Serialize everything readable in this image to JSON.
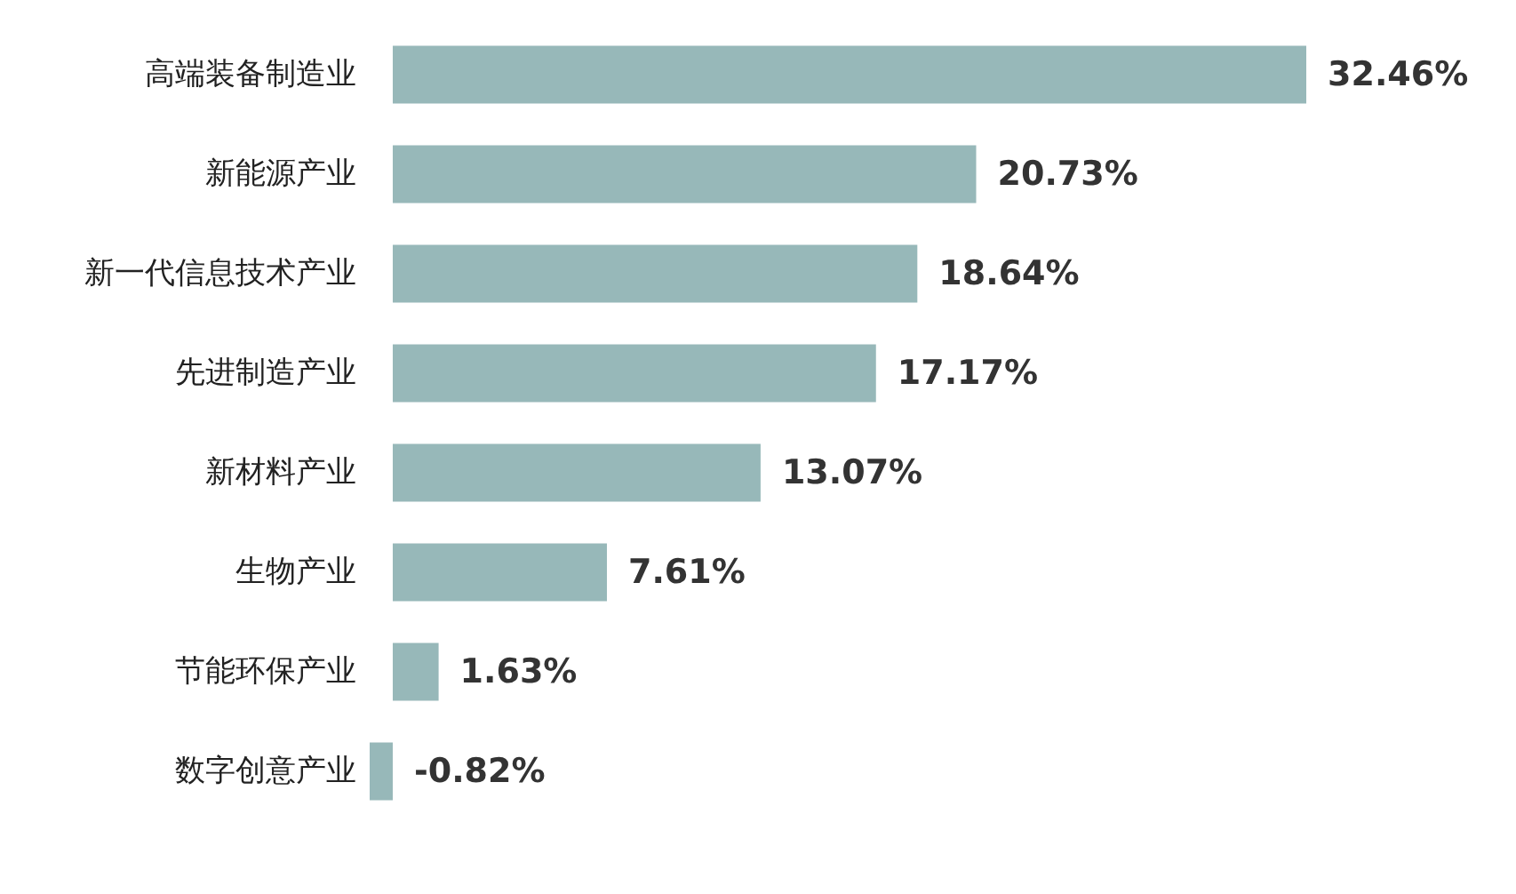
{
  "chart_data": {
    "type": "bar",
    "orientation": "horizontal",
    "categories": [
      "高端装备制造业",
      "新能源产业",
      "新一代信息技术产业",
      "先进制造产业",
      "新材料产业",
      "生物产业",
      "节能环保产业",
      "数字创意产业"
    ],
    "values": [
      32.46,
      20.73,
      18.64,
      17.17,
      13.07,
      7.61,
      1.63,
      -0.82
    ],
    "value_labels": [
      "32.46%",
      "20.73%",
      "18.64%",
      "17.17%",
      "13.07%",
      "7.61%",
      "1.63%",
      "-0.82%"
    ],
    "color": "#97b8b9",
    "tick_labels": "y"
  }
}
